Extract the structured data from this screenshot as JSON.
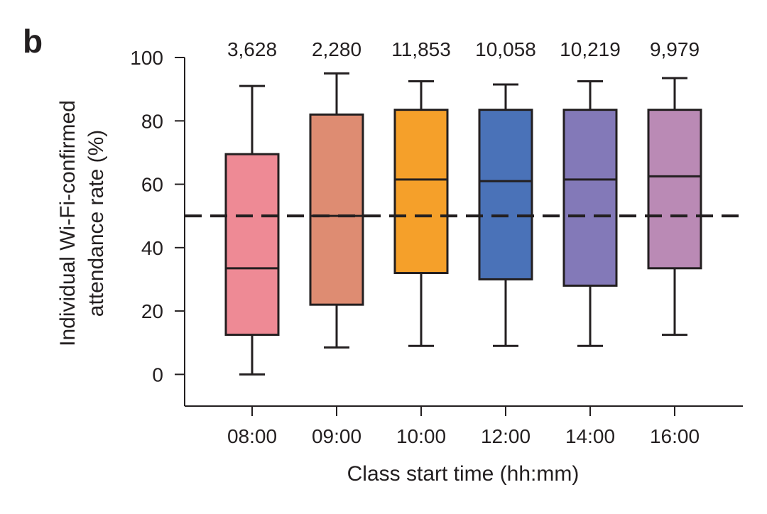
{
  "panel_label": "b",
  "chart_data": {
    "type": "box",
    "title": "",
    "xlabel": "Class start time (hh:mm)",
    "ylabel_lines": [
      "Individual Wi-Fi-confirmed",
      "attendance rate (%)"
    ],
    "ylim": [
      -10,
      100
    ],
    "yticks": [
      0,
      20,
      40,
      60,
      80,
      100
    ],
    "grid": false,
    "reference_line": {
      "y": 50,
      "style": "dashed",
      "color": "#231f20"
    },
    "categories": [
      "08:00",
      "09:00",
      "10:00",
      "12:00",
      "14:00",
      "16:00"
    ],
    "counts": [
      "3,628",
      "2,280",
      "11,853",
      "10,058",
      "10,219",
      "9,979"
    ],
    "boxes": [
      {
        "category": "08:00",
        "whisker_low": 0,
        "q1": 12.5,
        "median": 33.5,
        "q3": 69.5,
        "whisker_high": 91,
        "color": "#ee8a95"
      },
      {
        "category": "09:00",
        "whisker_low": 8.5,
        "q1": 22,
        "median": 50,
        "q3": 82,
        "whisker_high": 95,
        "color": "#de8c72"
      },
      {
        "category": "10:00",
        "whisker_low": 9,
        "q1": 32,
        "median": 61.5,
        "q3": 83.5,
        "whisker_high": 92.5,
        "color": "#f5a02a"
      },
      {
        "category": "12:00",
        "whisker_low": 9,
        "q1": 30,
        "median": 61,
        "q3": 83.5,
        "whisker_high": 91.5,
        "color": "#4a72b8"
      },
      {
        "category": "14:00",
        "whisker_low": 9,
        "q1": 28,
        "median": 61.5,
        "q3": 83.5,
        "whisker_high": 92.5,
        "color": "#8379b8"
      },
      {
        "category": "16:00",
        "whisker_low": 12.5,
        "q1": 33.5,
        "median": 62.5,
        "q3": 83.5,
        "whisker_high": 93.5,
        "color": "#ba8ab5"
      }
    ]
  }
}
